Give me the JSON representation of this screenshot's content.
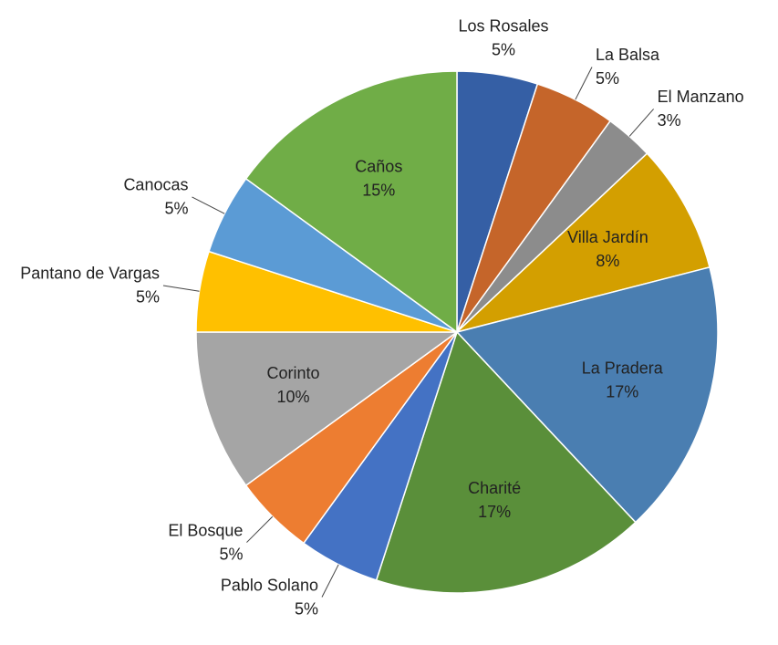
{
  "chart_data": {
    "type": "pie",
    "categories": [
      "Los Rosales",
      "La Balsa",
      "El Manzano",
      "Villa Jardín",
      "La Pradera",
      "Charité",
      "Pablo Solano",
      "El Bosque",
      "Corinto",
      "Pantano de Vargas",
      "Canocas",
      "Caños"
    ],
    "values": [
      5,
      5,
      3,
      8,
      17,
      17,
      5,
      5,
      10,
      5,
      5,
      15
    ],
    "value_labels": [
      "5%",
      "5%",
      "3%",
      "8%",
      "17%",
      "17%",
      "5%",
      "5%",
      "10%",
      "5%",
      "5%",
      "15%"
    ],
    "colors": [
      "#355fa5",
      "#c5652a",
      "#8c8c8c",
      "#d39f00",
      "#4a7eb1",
      "#5a8f3a",
      "#4472c4",
      "#ed7d31",
      "#a5a5a5",
      "#ffc000",
      "#5b9bd5",
      "#70ad47"
    ]
  }
}
